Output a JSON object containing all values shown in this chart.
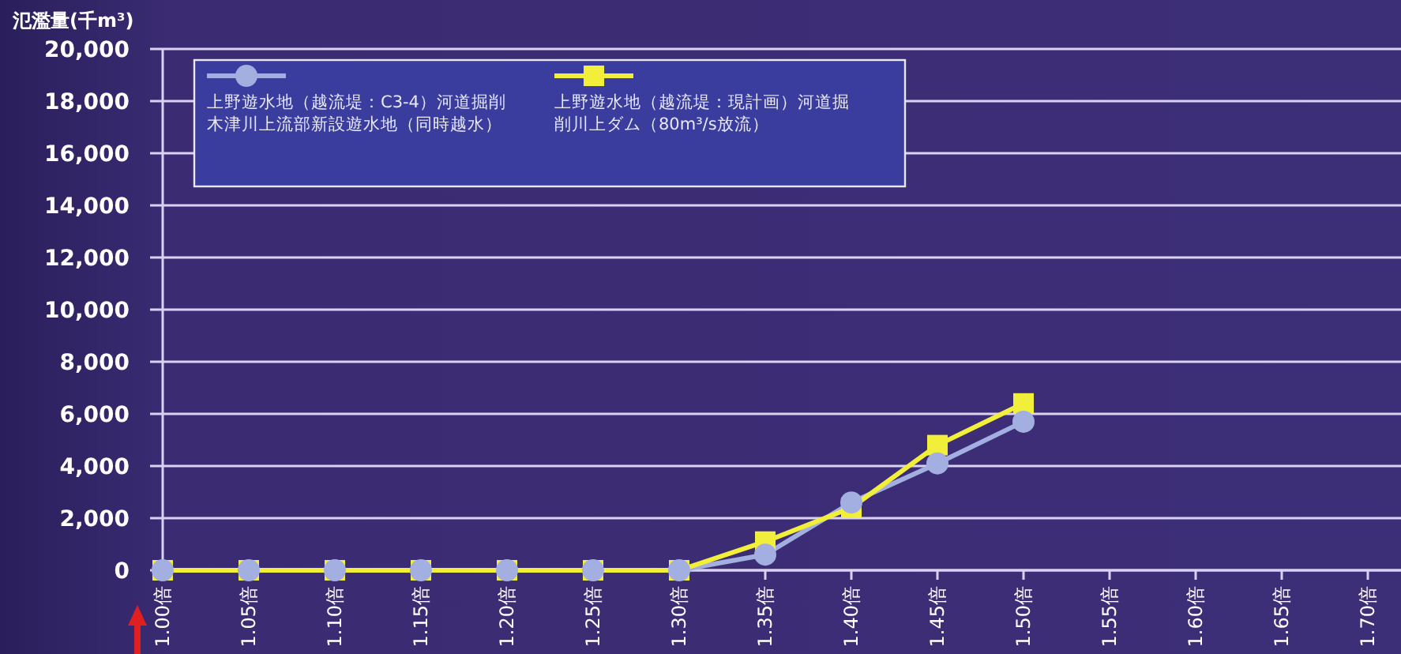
{
  "chart_data": {
    "type": "line",
    "ylabel": "氾濫量(千m³)",
    "categories": [
      "1.00倍",
      "1.05倍",
      "1.10倍",
      "1.15倍",
      "1.20倍",
      "1.25倍",
      "1.30倍",
      "1.35倍",
      "1.40倍",
      "1.45倍",
      "1.50倍",
      "1.55倍",
      "1.60倍",
      "1.65倍",
      "1.70倍"
    ],
    "series": [
      {
        "name": "上野遊水地（越流堤：C3-4）河道掘削木津川上流部新設遊水地（同時越水）",
        "color": "#a3afe0",
        "marker": "circle",
        "values": [
          0,
          0,
          0,
          0,
          0,
          0,
          0,
          600,
          2600,
          4100,
          5700,
          null,
          null,
          null,
          null
        ]
      },
      {
        "name": "上野遊水地（越流堤：現計画）河道掘削川上ダム（80m³/s放流）",
        "color": "#f2ef3a",
        "marker": "square",
        "values": [
          0,
          0,
          0,
          0,
          0,
          0,
          0,
          1100,
          2400,
          4800,
          6400,
          null,
          null,
          null,
          null
        ]
      }
    ],
    "ylim": [
      0,
      20000
    ],
    "yticks": [
      {
        "value": 0,
        "label": "0"
      },
      {
        "value": 2000,
        "label": "2,000"
      },
      {
        "value": 4000,
        "label": "4,000"
      },
      {
        "value": 6000,
        "label": "6,000"
      },
      {
        "value": 8000,
        "label": "8,000"
      },
      {
        "value": 10000,
        "label": "10,000"
      },
      {
        "value": 12000,
        "label": "12,000"
      },
      {
        "value": 14000,
        "label": "14,000"
      },
      {
        "value": 16000,
        "label": "16,000"
      },
      {
        "value": 18000,
        "label": "18,000"
      },
      {
        "value": 20000,
        "label": "20,000"
      }
    ],
    "grid": "y",
    "legend": "top left",
    "line_style": "solid"
  }
}
